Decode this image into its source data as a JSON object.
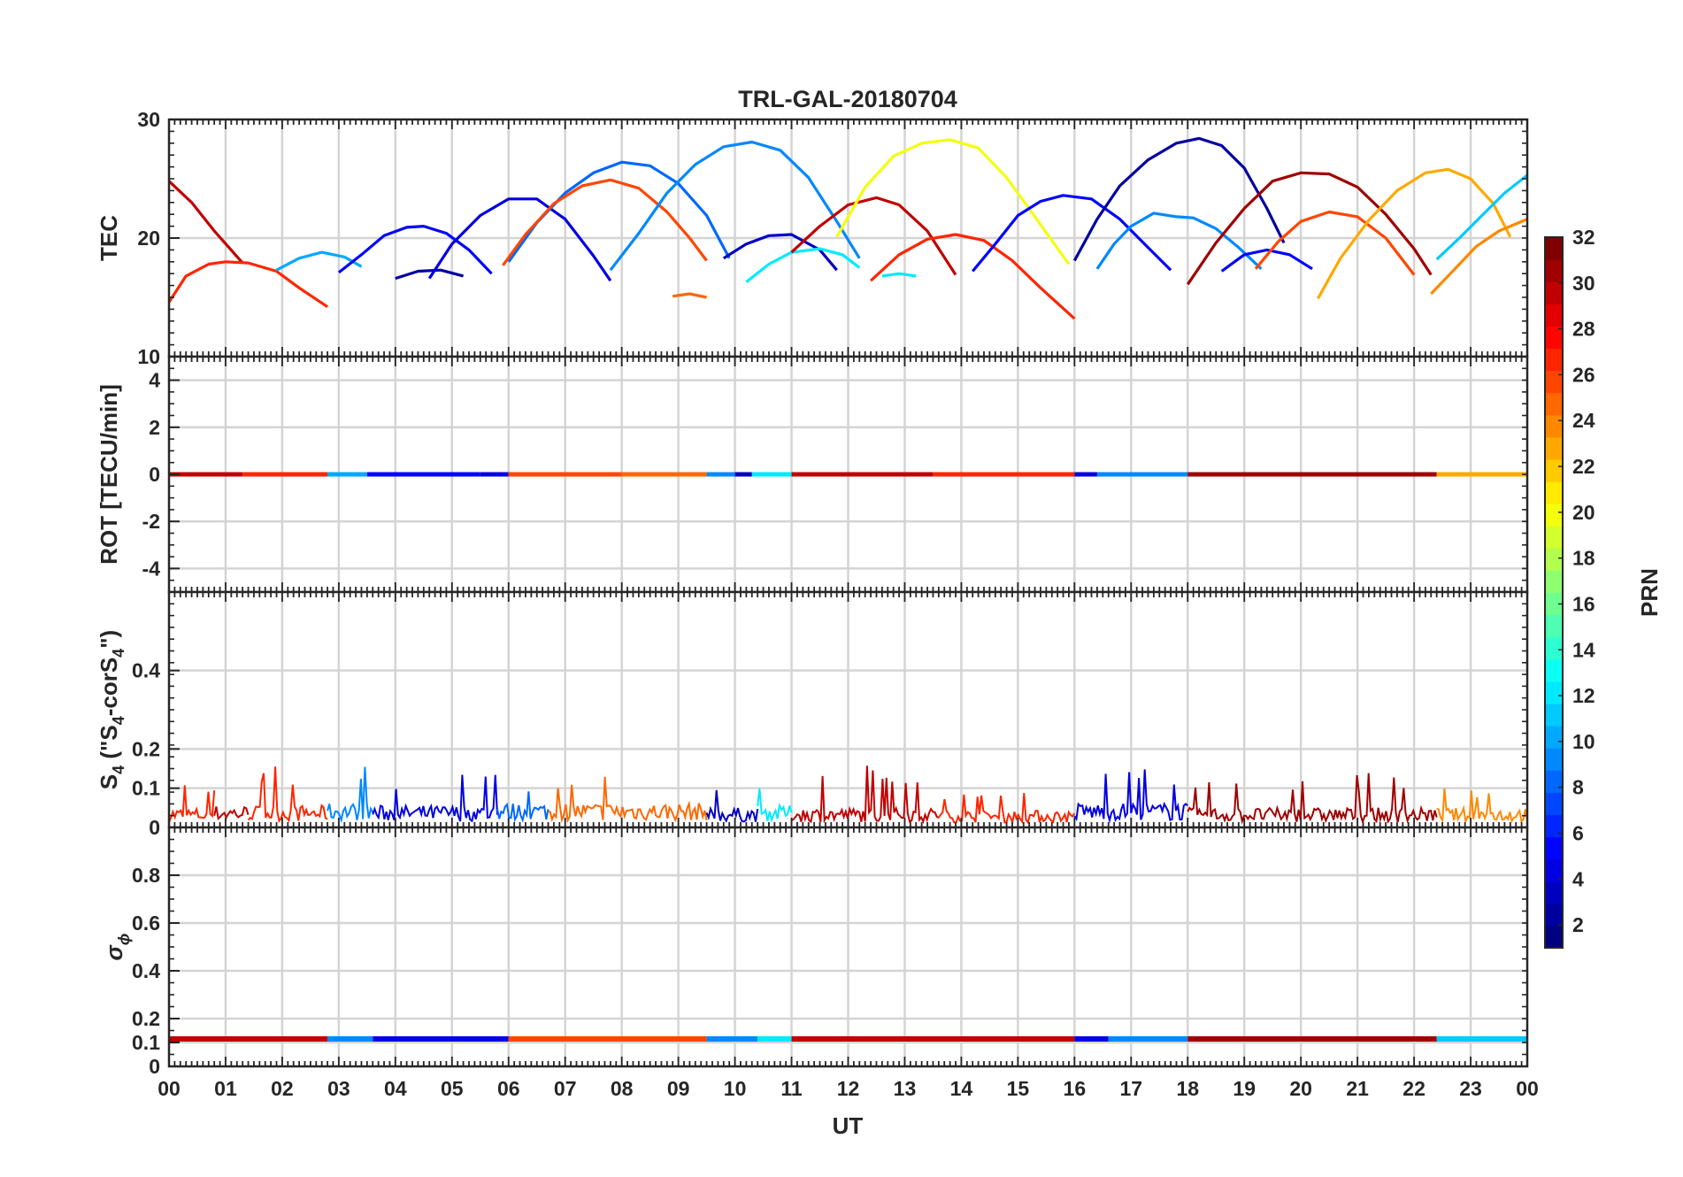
{
  "chart_data": {
    "type": "line",
    "title": "TRL-GAL-20180704",
    "xlabel": "UT",
    "x_ticks": [
      "00",
      "01",
      "02",
      "03",
      "04",
      "05",
      "06",
      "07",
      "08",
      "09",
      "10",
      "11",
      "12",
      "13",
      "14",
      "15",
      "16",
      "17",
      "18",
      "19",
      "20",
      "21",
      "22",
      "23",
      "00"
    ],
    "xlim": [
      0,
      24
    ],
    "grid": true,
    "colorbar": {
      "label": "PRN",
      "ticks": [
        "2",
        "4",
        "6",
        "8",
        "10",
        "12",
        "14",
        "16",
        "18",
        "20",
        "22",
        "24",
        "26",
        "28",
        "30",
        "32"
      ],
      "range": [
        1,
        32
      ],
      "colormap": "jet"
    },
    "panels": [
      {
        "id": "tec",
        "ylabel": "TEC",
        "ylim": [
          10,
          30
        ],
        "y_ticks": [
          "10",
          "20",
          "30"
        ],
        "y_tick_values": [
          10,
          20,
          30
        ],
        "series": [
          {
            "prn": 30,
            "x": [
              0.0,
              0.4,
              0.8,
              1.3
            ],
            "y": [
              24.8,
              23.0,
              20.6,
              17.9
            ]
          },
          {
            "prn": 27,
            "x": [
              0.0,
              0.3,
              0.7,
              1.0,
              1.4,
              1.9,
              2.3,
              2.8
            ],
            "y": [
              14.6,
              16.8,
              17.8,
              18.0,
              17.9,
              17.2,
              15.8,
              14.2
            ]
          },
          {
            "prn": 10,
            "x": [
              1.9,
              2.3,
              2.7,
              3.1,
              3.4
            ],
            "y": [
              17.3,
              18.3,
              18.8,
              18.4,
              17.6
            ]
          },
          {
            "prn": 5,
            "x": [
              3.0,
              3.4,
              3.8,
              4.2,
              4.5,
              4.9,
              5.3,
              5.7
            ],
            "y": [
              17.1,
              18.6,
              20.2,
              20.9,
              21.0,
              20.4,
              19.0,
              17.0
            ]
          },
          {
            "prn": 2,
            "x": [
              4.0,
              4.4,
              4.8,
              5.2
            ],
            "y": [
              16.6,
              17.2,
              17.3,
              16.8
            ]
          },
          {
            "prn": 4,
            "x": [
              4.6,
              5.0,
              5.5,
              6.0,
              6.5,
              7.0,
              7.5,
              7.8
            ],
            "y": [
              16.6,
              19.5,
              21.9,
              23.3,
              23.3,
              21.6,
              18.5,
              16.4
            ]
          },
          {
            "prn": 8,
            "x": [
              6.0,
              6.5,
              7.0,
              7.5,
              8.0,
              8.5,
              9.0,
              9.5,
              9.9
            ],
            "y": [
              18.0,
              21.3,
              23.8,
              25.5,
              26.4,
              26.1,
              24.6,
              21.9,
              18.3
            ]
          },
          {
            "prn": 26,
            "x": [
              5.9,
              6.3,
              6.8,
              7.3,
              7.8,
              8.3,
              8.8,
              9.2,
              9.5
            ],
            "y": [
              17.7,
              20.3,
              22.9,
              24.4,
              24.9,
              24.2,
              22.2,
              20.0,
              18.1
            ]
          },
          {
            "prn": 9,
            "x": [
              7.8,
              8.3,
              8.8,
              9.3,
              9.8,
              10.3,
              10.8,
              11.3,
              11.8,
              12.2
            ],
            "y": [
              17.3,
              20.4,
              23.8,
              26.2,
              27.7,
              28.1,
              27.4,
              25.1,
              21.4,
              18.3
            ]
          },
          {
            "prn": 25,
            "x": [
              8.9,
              9.2,
              9.5
            ],
            "y": [
              15.1,
              15.3,
              15.0
            ]
          },
          {
            "prn": 3,
            "x": [
              9.8,
              10.2,
              10.6,
              11.0,
              11.5,
              11.8
            ],
            "y": [
              18.3,
              19.5,
              20.2,
              20.3,
              19.0,
              17.3
            ]
          },
          {
            "prn": 12,
            "x": [
              10.2,
              10.6,
              11.0,
              11.5,
              11.9,
              12.2
            ],
            "y": [
              16.3,
              17.8,
              18.8,
              19.1,
              18.6,
              17.5
            ]
          },
          {
            "prn": 30,
            "x": [
              11.0,
              11.5,
              12.0,
              12.5,
              12.9,
              13.4,
              13.9
            ],
            "y": [
              18.8,
              21.0,
              22.8,
              23.4,
              22.8,
              20.6,
              16.9
            ]
          },
          {
            "prn": 20,
            "x": [
              11.8,
              12.3,
              12.8,
              13.3,
              13.8,
              14.3,
              14.8,
              15.3,
              15.9
            ],
            "y": [
              20.1,
              24.3,
              26.9,
              28.0,
              28.3,
              27.6,
              25.1,
              21.8,
              17.8
            ]
          },
          {
            "prn": 12,
            "x": [
              12.6,
              12.9,
              13.2
            ],
            "y": [
              16.8,
              17.0,
              16.8
            ]
          },
          {
            "prn": 27,
            "x": [
              12.4,
              12.9,
              13.4,
              13.9,
              14.4,
              14.9,
              15.4,
              16.0
            ],
            "y": [
              16.4,
              18.6,
              19.9,
              20.3,
              19.8,
              18.1,
              15.8,
              13.2
            ]
          },
          {
            "prn": 5,
            "x": [
              14.2,
              14.6,
              15.0,
              15.4,
              15.8,
              16.3,
              16.8,
              17.3,
              17.7
            ],
            "y": [
              17.2,
              19.5,
              21.9,
              23.1,
              23.6,
              23.3,
              21.6,
              19.2,
              17.3
            ]
          },
          {
            "prn": 2,
            "x": [
              16.0,
              16.4,
              16.8,
              17.3,
              17.8,
              18.2,
              18.6,
              19.0,
              19.4,
              19.7
            ],
            "y": [
              18.1,
              21.6,
              24.4,
              26.6,
              28.0,
              28.4,
              27.8,
              25.9,
              22.5,
              19.6
            ]
          },
          {
            "prn": 9,
            "x": [
              16.4,
              16.7,
              17.0,
              17.4,
              17.8,
              18.1,
              18.5,
              18.9,
              19.3
            ],
            "y": [
              17.4,
              19.5,
              21.0,
              22.1,
              21.8,
              21.7,
              20.8,
              19.2,
              17.4
            ]
          },
          {
            "prn": 5,
            "x": [
              18.6,
              19.0,
              19.4,
              19.8,
              20.2
            ],
            "y": [
              17.2,
              18.6,
              19.0,
              18.6,
              17.4
            ]
          },
          {
            "prn": 31,
            "x": [
              18.0,
              18.5,
              19.0,
              19.5,
              20.0,
              20.5,
              21.0,
              21.5,
              22.0,
              22.3
            ],
            "y": [
              16.1,
              19.6,
              22.5,
              24.8,
              25.5,
              25.4,
              24.3,
              22.0,
              19.1,
              16.9
            ]
          },
          {
            "prn": 26,
            "x": [
              19.2,
              19.6,
              20.0,
              20.5,
              21.0,
              21.5,
              22.0
            ],
            "y": [
              17.4,
              19.7,
              21.4,
              22.2,
              21.8,
              20.0,
              16.9
            ]
          },
          {
            "prn": 23,
            "x": [
              20.3,
              20.7,
              21.2,
              21.7,
              22.2,
              22.6,
              23.0,
              23.4,
              23.7
            ],
            "y": [
              14.9,
              18.3,
              21.5,
              24.0,
              25.5,
              25.8,
              25.0,
              22.9,
              20.1
            ]
          },
          {
            "prn": 11,
            "x": [
              22.4,
              22.8,
              23.2,
              23.6,
              24.0
            ],
            "y": [
              18.2,
              20.0,
              21.9,
              23.8,
              25.3
            ]
          },
          {
            "prn": 24,
            "x": [
              22.3,
              22.7,
              23.1,
              23.5,
              24.0
            ],
            "y": [
              15.3,
              17.3,
              19.3,
              20.6,
              21.6
            ]
          }
        ]
      },
      {
        "id": "rot",
        "ylabel": "ROT [TECU/min]",
        "ylim": [
          -5,
          5
        ],
        "y_ticks": [
          "-4",
          "-2",
          "0",
          "2",
          "4"
        ],
        "y_tick_values": [
          -4,
          -2,
          0,
          2,
          4
        ],
        "baseline": 0,
        "segments": [
          {
            "prn": 30,
            "x": [
              0.0,
              1.3
            ]
          },
          {
            "prn": 27,
            "x": [
              1.3,
              2.8
            ]
          },
          {
            "prn": 10,
            "x": [
              2.8,
              3.5
            ]
          },
          {
            "prn": 5,
            "x": [
              3.5,
              5.5
            ]
          },
          {
            "prn": 4,
            "x": [
              5.5,
              6.0
            ]
          },
          {
            "prn": 26,
            "x": [
              6.0,
              8.0
            ]
          },
          {
            "prn": 25,
            "x": [
              8.0,
              9.5
            ]
          },
          {
            "prn": 9,
            "x": [
              9.5,
              10.0
            ]
          },
          {
            "prn": 3,
            "x": [
              10.0,
              10.3
            ]
          },
          {
            "prn": 12,
            "x": [
              10.3,
              11.0
            ]
          },
          {
            "prn": 30,
            "x": [
              11.0,
              13.5
            ]
          },
          {
            "prn": 27,
            "x": [
              13.5,
              16.0
            ]
          },
          {
            "prn": 4,
            "x": [
              16.0,
              16.4
            ]
          },
          {
            "prn": 9,
            "x": [
              16.4,
              18.0
            ]
          },
          {
            "prn": 31,
            "x": [
              18.0,
              22.4
            ]
          },
          {
            "prn": 23,
            "x": [
              22.4,
              24.0
            ]
          }
        ]
      },
      {
        "id": "s4",
        "ylabel": "S",
        "ylabel_sub": "4",
        "ylabel_rest": " (\"S",
        "ylabel_sub2": "4",
        "ylabel_rest2": "-corS",
        "ylabel_sub3": "4",
        "ylabel_end": "\")",
        "ylim": [
          0,
          0.6
        ],
        "y_ticks": [
          "0",
          "0.1",
          "0.2",
          "0.4"
        ],
        "y_tick_values": [
          0,
          0.1,
          0.2,
          0.4
        ],
        "segments": [
          {
            "prn": 27,
            "x": [
              0.0,
              0.8
            ],
            "base": 0.04,
            "spike": 0.12
          },
          {
            "prn": 30,
            "x": [
              0.8,
              1.4
            ],
            "base": 0.045,
            "spike": 0.14
          },
          {
            "prn": 27,
            "x": [
              1.4,
              2.8
            ],
            "base": 0.045,
            "spike": 0.16
          },
          {
            "prn": 9,
            "x": [
              2.8,
              3.6
            ],
            "base": 0.05,
            "spike": 0.18
          },
          {
            "prn": 4,
            "x": [
              3.6,
              5.8
            ],
            "base": 0.045,
            "spike": 0.15
          },
          {
            "prn": 8,
            "x": [
              5.8,
              6.7
            ],
            "base": 0.05,
            "spike": 0.13
          },
          {
            "prn": 25,
            "x": [
              6.7,
              9.5
            ],
            "base": 0.05,
            "spike": 0.15
          },
          {
            "prn": 3,
            "x": [
              9.5,
              10.4
            ],
            "base": 0.04,
            "spike": 0.11
          },
          {
            "prn": 12,
            "x": [
              10.4,
              11.0
            ],
            "base": 0.045,
            "spike": 0.1
          },
          {
            "prn": 30,
            "x": [
              11.0,
              13.6
            ],
            "base": 0.04,
            "spike": 0.16
          },
          {
            "prn": 27,
            "x": [
              13.6,
              16.0
            ],
            "base": 0.035,
            "spike": 0.09
          },
          {
            "prn": 4,
            "x": [
              16.0,
              18.0
            ],
            "base": 0.05,
            "spike": 0.15
          },
          {
            "prn": 31,
            "x": [
              18.0,
              22.4
            ],
            "base": 0.04,
            "spike": 0.14
          },
          {
            "prn": 24,
            "x": [
              22.4,
              24.0
            ],
            "base": 0.04,
            "spike": 0.1
          }
        ]
      },
      {
        "id": "sigma",
        "ylabel": "σ",
        "ylabel_sub": "ϕ",
        "ylim": [
          0,
          1
        ],
        "y_ticks": [
          "0",
          "0.1",
          "0.2",
          "0.4",
          "0.6",
          "0.8"
        ],
        "y_tick_values": [
          0,
          0.1,
          0.2,
          0.4,
          0.6,
          0.8
        ],
        "baseline": 0.115,
        "segments": [
          {
            "prn": 30,
            "x": [
              0.0,
              2.8
            ]
          },
          {
            "prn": 9,
            "x": [
              2.8,
              3.6
            ]
          },
          {
            "prn": 4,
            "x": [
              3.6,
              6.0
            ]
          },
          {
            "prn": 26,
            "x": [
              6.0,
              9.5
            ]
          },
          {
            "prn": 9,
            "x": [
              9.5,
              10.4
            ]
          },
          {
            "prn": 12,
            "x": [
              10.4,
              11.0
            ]
          },
          {
            "prn": 30,
            "x": [
              11.0,
              16.0
            ]
          },
          {
            "prn": 4,
            "x": [
              16.0,
              16.6
            ]
          },
          {
            "prn": 9,
            "x": [
              16.6,
              18.0
            ]
          },
          {
            "prn": 31,
            "x": [
              18.0,
              22.4
            ]
          },
          {
            "prn": 11,
            "x": [
              22.4,
              24.0
            ]
          }
        ]
      }
    ]
  }
}
